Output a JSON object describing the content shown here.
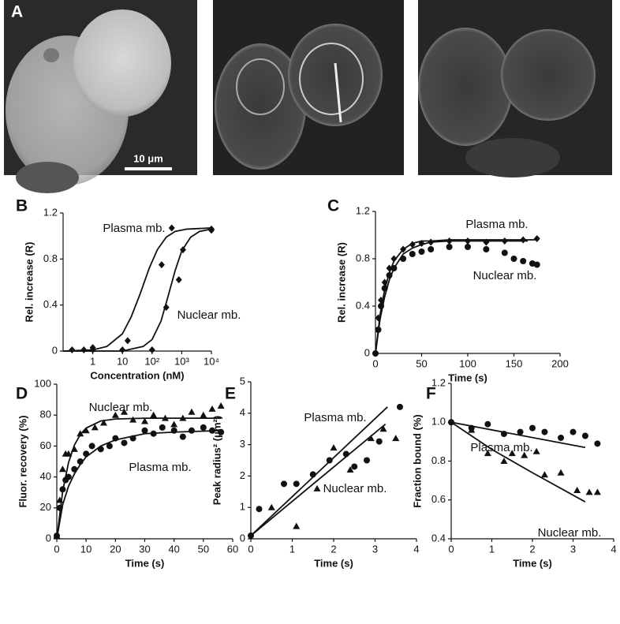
{
  "figure": {
    "panel_a": {
      "label": "A",
      "scale_bar": "10 μm"
    }
  },
  "chart_data": [
    {
      "type": "scatter",
      "panel": "B",
      "x_label": "Concentration (nM)",
      "y_label": "Rel. increase (R)",
      "xscale": "log",
      "xlim": [
        0.1,
        10000
      ],
      "ylim": [
        0,
        1.2
      ],
      "xticks": [
        1,
        10,
        {
          "value": 100,
          "label": "10²"
        },
        {
          "value": 1000,
          "label": "10³"
        },
        {
          "value": 10000,
          "label": "10⁴"
        }
      ],
      "yticks": [
        0,
        0.4,
        0.8,
        1.2
      ],
      "series": [
        {
          "name": "Plasma mb.",
          "color": "#111111",
          "marker": "diamond",
          "x": [
            0.2,
            0.5,
            1,
            15,
            210,
            460,
            10000
          ],
          "values": [
            0.01,
            0.01,
            0.03,
            0.09,
            0.75,
            1.07,
            1.05
          ],
          "fit_x": [
            0.1,
            1,
            3,
            10,
            20,
            40,
            80,
            150,
            300,
            600,
            1500,
            10000
          ],
          "fit": [
            0,
            0.01,
            0.04,
            0.15,
            0.3,
            0.5,
            0.72,
            0.88,
            0.99,
            1.04,
            1.06,
            1.07
          ]
        },
        {
          "name": "Nuclear mb.",
          "color": "#111111",
          "marker": "diamond",
          "x": [
            1,
            10,
            100,
            300,
            800,
            1100,
            10000
          ],
          "values": [
            0.01,
            0.01,
            0.01,
            0.38,
            0.62,
            0.88,
            1.06
          ],
          "fit_x": [
            0.1,
            10,
            50,
            100,
            200,
            350,
            600,
            1000,
            2000,
            4000,
            10000
          ],
          "fit": [
            0,
            0,
            0.04,
            0.1,
            0.26,
            0.48,
            0.7,
            0.87,
            0.99,
            1.04,
            1.06
          ]
        }
      ]
    },
    {
      "type": "scatter",
      "panel": "C",
      "x_label": "Time (s)",
      "y_label": "Rel. increase (R)",
      "xlim": [
        0,
        200
      ],
      "ylim": [
        0,
        1.2
      ],
      "xticks": [
        0,
        50,
        100,
        150,
        200
      ],
      "yticks": [
        0,
        0.4,
        0.8,
        1.2
      ],
      "series": [
        {
          "name": "Plasma mb.",
          "color": "#111111",
          "marker": "diamond",
          "x": [
            0,
            3,
            6,
            10,
            15,
            20,
            30,
            40,
            50,
            60,
            80,
            100,
            120,
            140,
            160,
            175
          ],
          "values": [
            0,
            0.3,
            0.45,
            0.6,
            0.72,
            0.8,
            0.88,
            0.92,
            0.93,
            0.94,
            0.95,
            0.95,
            0.94,
            0.95,
            0.96,
            0.97
          ],
          "fit_x": [
            0,
            5,
            10,
            15,
            20,
            30,
            40,
            50,
            60,
            80,
            100,
            130,
            175
          ],
          "fit": [
            0,
            0.33,
            0.54,
            0.68,
            0.78,
            0.88,
            0.93,
            0.95,
            0.95,
            0.96,
            0.96,
            0.96,
            0.96
          ]
        },
        {
          "name": "Nuclear mb.",
          "color": "#111111",
          "marker": "circle",
          "x": [
            0,
            3,
            6,
            10,
            15,
            20,
            30,
            40,
            50,
            60,
            80,
            100,
            120,
            140,
            150,
            160,
            170,
            175
          ],
          "values": [
            0,
            0.2,
            0.4,
            0.55,
            0.66,
            0.72,
            0.8,
            0.84,
            0.86,
            0.88,
            0.9,
            0.9,
            0.88,
            0.85,
            0.8,
            0.78,
            0.76,
            0.75
          ],
          "fit_x": [
            0,
            5,
            10,
            15,
            20,
            30,
            40,
            50,
            60,
            80,
            100,
            130,
            165
          ],
          "fit": [
            0,
            0.29,
            0.48,
            0.62,
            0.72,
            0.84,
            0.89,
            0.92,
            0.94,
            0.95,
            0.95,
            0.95,
            0.95
          ]
        }
      ]
    },
    {
      "type": "scatter",
      "panel": "D",
      "x_label": "Time (s)",
      "y_label": "Fluor. recovery (%)",
      "xlim": [
        0,
        60
      ],
      "ylim": [
        0,
        100
      ],
      "xticks": [
        0,
        10,
        20,
        30,
        40,
        50,
        60
      ],
      "yticks": [
        0,
        20,
        40,
        60,
        80,
        100
      ],
      "series": [
        {
          "name": "Nuclear mb.",
          "color": "#111111",
          "marker": "triangle",
          "x": [
            0,
            1,
            2,
            3,
            4,
            6,
            8,
            10,
            13,
            16,
            20,
            23,
            26,
            30,
            33,
            37,
            40,
            43,
            46,
            50,
            53,
            56
          ],
          "values": [
            2,
            25,
            45,
            55,
            55,
            58,
            68,
            70,
            72,
            75,
            80,
            82,
            77,
            76,
            80,
            78,
            74,
            78,
            82,
            80,
            84,
            86
          ],
          "fit_x": [
            0,
            2,
            4,
            6,
            8,
            10,
            15,
            20,
            30,
            40,
            56
          ],
          "fit": [
            0,
            30.7,
            49.3,
            60.6,
            67.4,
            71.6,
            76.2,
            77.5,
            78,
            78,
            78
          ]
        },
        {
          "name": "Plasma mb.",
          "color": "#111111",
          "marker": "circle",
          "x": [
            0,
            1,
            2,
            3,
            4,
            6,
            8,
            10,
            12,
            15,
            18,
            20,
            23,
            26,
            30,
            33,
            36,
            40,
            43,
            46,
            50,
            53,
            56
          ],
          "values": [
            2,
            20,
            32,
            38,
            40,
            45,
            50,
            55,
            60,
            58,
            60,
            65,
            62,
            65,
            70,
            68,
            72,
            70,
            66,
            70,
            72,
            70,
            69
          ],
          "fit_x": [
            0,
            2,
            4,
            6,
            8,
            10,
            15,
            20,
            30,
            40,
            56
          ],
          "fit": [
            0,
            22,
            34,
            42,
            48,
            53,
            60,
            64,
            68,
            69,
            70
          ]
        }
      ]
    },
    {
      "type": "scatter",
      "panel": "E",
      "x_label": "Time (s)",
      "y_label": "Peak radius² (μm²)",
      "xlim": [
        0,
        4
      ],
      "ylim": [
        0,
        5
      ],
      "xticks": [
        0,
        1,
        2,
        3,
        4
      ],
      "yticks": [
        0,
        1,
        2,
        3,
        4,
        5
      ],
      "series": [
        {
          "name": "Plasma mb.",
          "color": "#111111",
          "marker": "circle",
          "x": [
            0,
            0.2,
            0.8,
            1.1,
            1.5,
            1.9,
            2.3,
            2.5,
            2.8,
            3.1,
            3.6
          ],
          "values": [
            0.1,
            0.95,
            1.75,
            1.75,
            2.05,
            2.5,
            2.7,
            2.3,
            2.5,
            3.1,
            4.2
          ],
          "fit_x": [
            0,
            3.3
          ],
          "fit": [
            0.1,
            4.2
          ]
        },
        {
          "name": "Nuclear mb.",
          "color": "#111111",
          "marker": "triangle",
          "x": [
            0.5,
            1.1,
            1.6,
            2.0,
            2.4,
            2.9,
            3.2,
            3.5
          ],
          "values": [
            1.0,
            0.4,
            1.6,
            2.9,
            2.2,
            3.2,
            3.5,
            3.2
          ],
          "fit_x": [
            0,
            3.25
          ],
          "fit": [
            0.1,
            3.65
          ]
        }
      ]
    },
    {
      "type": "scatter",
      "panel": "F",
      "x_label": "Time (s)",
      "y_label": "Fraction bound (%)",
      "xlim": [
        0,
        4
      ],
      "ylim": [
        0.4,
        1.2
      ],
      "xticks": [
        0,
        1,
        2,
        3,
        4
      ],
      "yticks": [
        0.4,
        0.6,
        0.8,
        {
          "value": 1,
          "label": "1.0"
        },
        1.2
      ],
      "series": [
        {
          "name": "Plasma mb.",
          "color": "#111111",
          "marker": "circle",
          "x": [
            0,
            0.5,
            0.9,
            1.3,
            1.7,
            2.0,
            2.3,
            2.7,
            3.0,
            3.3,
            3.6
          ],
          "values": [
            1.0,
            0.97,
            0.99,
            0.94,
            0.95,
            0.97,
            0.95,
            0.92,
            0.95,
            0.93,
            0.89
          ],
          "fit_x": [
            0,
            3.3
          ],
          "fit": [
            1.0,
            0.87
          ]
        },
        {
          "name": "Nuclear mb.",
          "color": "#111111",
          "marker": "triangle",
          "x": [
            0.5,
            0.9,
            1.3,
            1.5,
            1.8,
            2.1,
            2.3,
            2.7,
            3.1,
            3.4,
            3.6
          ],
          "values": [
            0.96,
            0.84,
            0.8,
            0.84,
            0.83,
            0.85,
            0.73,
            0.74,
            0.65,
            0.64,
            0.64
          ],
          "fit_x": [
            0,
            1,
            2,
            3.3
          ],
          "fit": [
            1.0,
            0.86,
            0.74,
            0.59
          ]
        }
      ]
    }
  ]
}
